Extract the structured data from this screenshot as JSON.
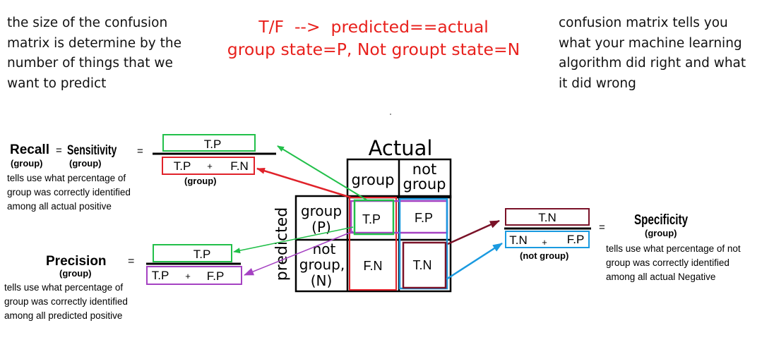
{
  "notes": {
    "size_note": [
      "the size of the confusion",
      "matrix is determine by the",
      "number of things that we",
      "want to predict"
    ],
    "what_note": [
      "confusion matrix tells you",
      "what your machine learning",
      "algorithm did right and what",
      "it did wrong"
    ]
  },
  "legend": {
    "line1": "T/F  -->  predicted==actual",
    "line2": "group state=P, Not groupt state=N"
  },
  "matrix": {
    "actual_label": "Actual",
    "predicted_label": "predicted",
    "col_group": "group",
    "col_not": "not",
    "col_not2": "group",
    "row_group": "group",
    "row_group_p": "(P)",
    "row_not": "not",
    "row_not2": "group,",
    "row_not_n": "(N)",
    "tp": "T.P",
    "fp": "F.P",
    "fn": "F.N",
    "tn": "T.N"
  },
  "recall": {
    "name": "Recall",
    "name_sub": "(group)",
    "eq1": "=",
    "synonym": "Sensitivity",
    "synonym_sub": "(group)",
    "eq2": "=",
    "numerator": "T.P",
    "den_left": "T.P",
    "den_plus": "+",
    "den_right": "F.N",
    "den_sub": "(group)",
    "desc": [
      "tells use what percentage of",
      "group was correctly identified",
      "among all actual positive"
    ]
  },
  "precision": {
    "name": "Precision",
    "name_sub": "(group)",
    "eq": "=",
    "numerator": "T.P",
    "den_left": "T.P",
    "den_plus": "+",
    "den_right": "F.P",
    "desc": [
      "tells use what percentage of",
      "group was correctly identified",
      "among all predicted positive"
    ]
  },
  "specificity": {
    "name": "Specificity",
    "name_sub": "(group)",
    "eq": "=",
    "numerator": "T.N",
    "den_left": "T.N",
    "den_plus": "+",
    "den_right": "F.P",
    "den_sub": "(not group)",
    "desc": [
      "tells use what percentage of not",
      "group was correctly identified",
      "among all actual Negative"
    ]
  },
  "colors": {
    "green": "#22c04a",
    "red": "#e0222a",
    "purple": "#a542c2",
    "maroon": "#7a1228",
    "blue": "#1a9ae0",
    "legend": "#e8201c"
  }
}
